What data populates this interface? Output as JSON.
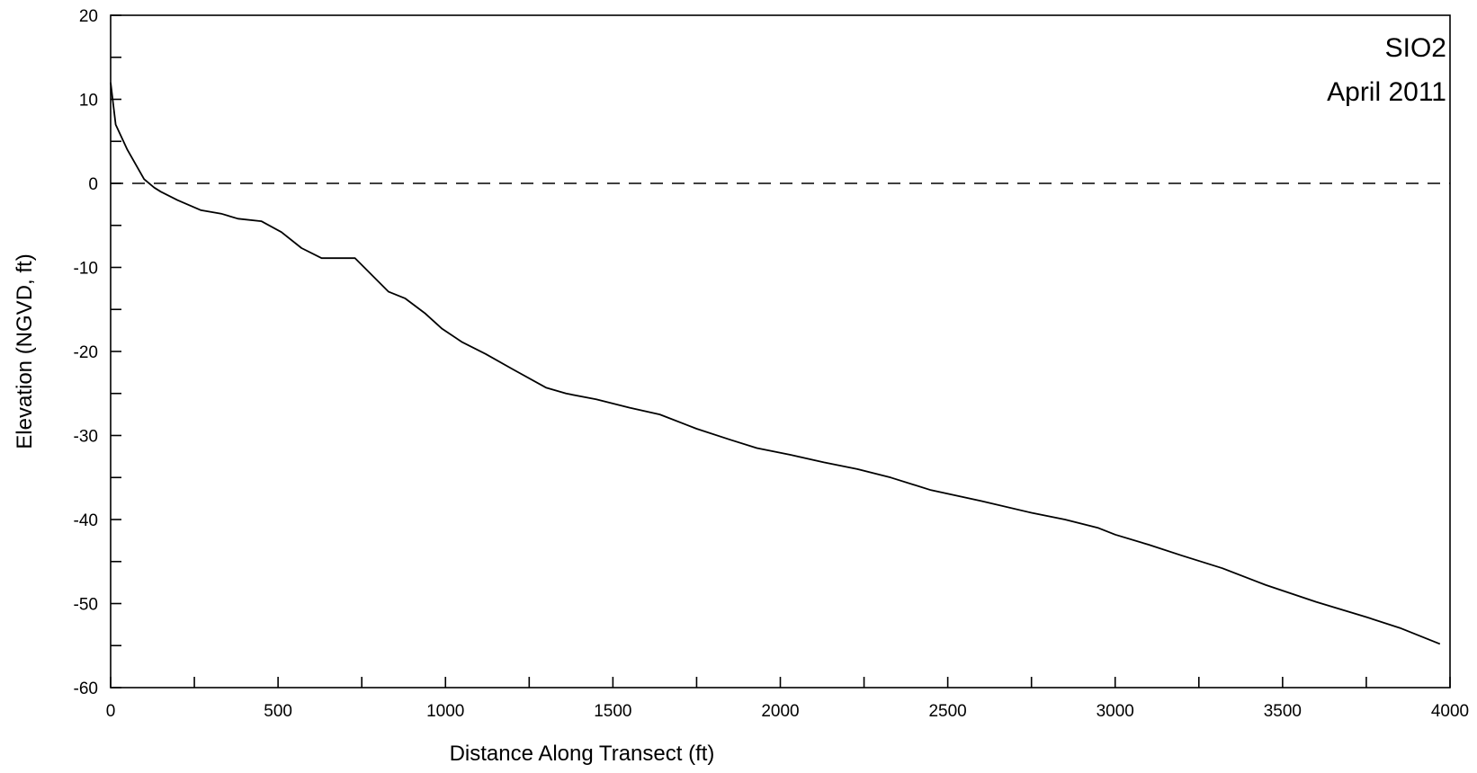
{
  "chart_data": {
    "type": "line",
    "title": "",
    "annotations": [
      "SIO2",
      "April 2011"
    ],
    "xlabel": "Distance Along Transect (ft)",
    "ylabel": "Elevation (NGVD, ft)",
    "xlim": [
      0,
      4000
    ],
    "ylim": [
      -60,
      20
    ],
    "xticks": [
      0,
      500,
      1000,
      1500,
      2000,
      2500,
      3000,
      3500,
      4000
    ],
    "yticks": [
      20,
      10,
      0,
      -10,
      -20,
      -30,
      -40,
      -50,
      -60
    ],
    "grid": false,
    "reference_line": {
      "y": 0,
      "style": "dashed"
    },
    "series": [
      {
        "x": [
          0,
          15,
          50,
          100,
          130,
          150,
          200,
          270,
          330,
          380,
          450,
          510,
          570,
          630,
          730,
          830,
          880,
          940,
          990,
          1050,
          1120,
          1200,
          1300,
          1360,
          1450,
          1550,
          1640,
          1750,
          1850,
          1930,
          2030,
          2130,
          2230,
          2330,
          2450,
          2600,
          2750,
          2850,
          2950,
          3000,
          3100,
          3200,
          3320,
          3450,
          3600,
          3750,
          3850,
          3970
        ],
        "y": [
          12,
          7,
          4,
          0.5,
          -0.5,
          -1,
          -2,
          -3.2,
          -3.6,
          -4.2,
          -4.5,
          -5.8,
          -7.7,
          -8.9,
          -8.9,
          -12.9,
          -13.7,
          -15.5,
          -17.3,
          -18.9,
          -20.3,
          -22.1,
          -24.3,
          -25.0,
          -25.7,
          -26.7,
          -27.5,
          -29.2,
          -30.5,
          -31.5,
          -32.3,
          -33.2,
          -34.0,
          -35.0,
          -36.5,
          -37.8,
          -39.2,
          -40.0,
          -41.0,
          -41.8,
          -43.0,
          -44.3,
          -45.8,
          -47.8,
          -49.8,
          -51.6,
          -52.9,
          -54.8
        ]
      }
    ]
  }
}
